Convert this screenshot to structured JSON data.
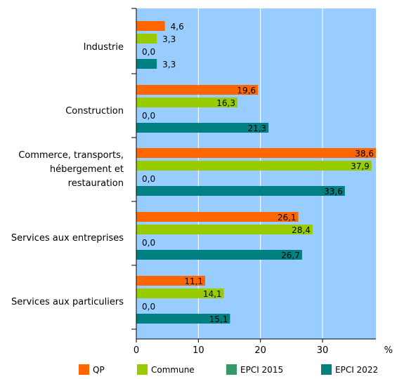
{
  "chart_data": {
    "type": "bar",
    "orientation": "horizontal",
    "categories": [
      [
        "Industrie"
      ],
      [
        "Construction"
      ],
      [
        "Commerce, transports,",
        "hébergement et",
        "restauration"
      ],
      [
        "Services aux entreprises"
      ],
      [
        "Services aux particuliers"
      ]
    ],
    "series": [
      {
        "name": "QP",
        "color": "#ff6600",
        "values": [
          4.6,
          19.6,
          38.6,
          26.1,
          11.1
        ],
        "labels": [
          "4,6",
          "19,6",
          "38,6",
          "26,1",
          "11,1"
        ]
      },
      {
        "name": "Commune",
        "color": "#99cc00",
        "values": [
          3.3,
          16.3,
          37.9,
          28.4,
          14.1
        ],
        "labels": [
          "3,3",
          "16,3",
          "37,9",
          "28,4",
          "14,1"
        ]
      },
      {
        "name": "EPCI 2015",
        "color": "#339966",
        "values": [
          0.0,
          0.0,
          0.0,
          0.0,
          0.0
        ],
        "labels": [
          "0,0",
          "0,0",
          "0,0",
          "0,0",
          "0,0"
        ]
      },
      {
        "name": "EPCI 2022",
        "color": "#008080",
        "values": [
          3.3,
          21.3,
          33.6,
          26.7,
          15.1
        ],
        "labels": [
          "3,3",
          "21,3",
          "33,6",
          "26,7",
          "15,1"
        ]
      }
    ],
    "xticks": [
      0,
      10,
      20,
      30
    ],
    "xlim": [
      0,
      38.6
    ],
    "xlabel": "%",
    "grid": true,
    "plot_background": "#99ccff",
    "legend_position": "bottom"
  }
}
